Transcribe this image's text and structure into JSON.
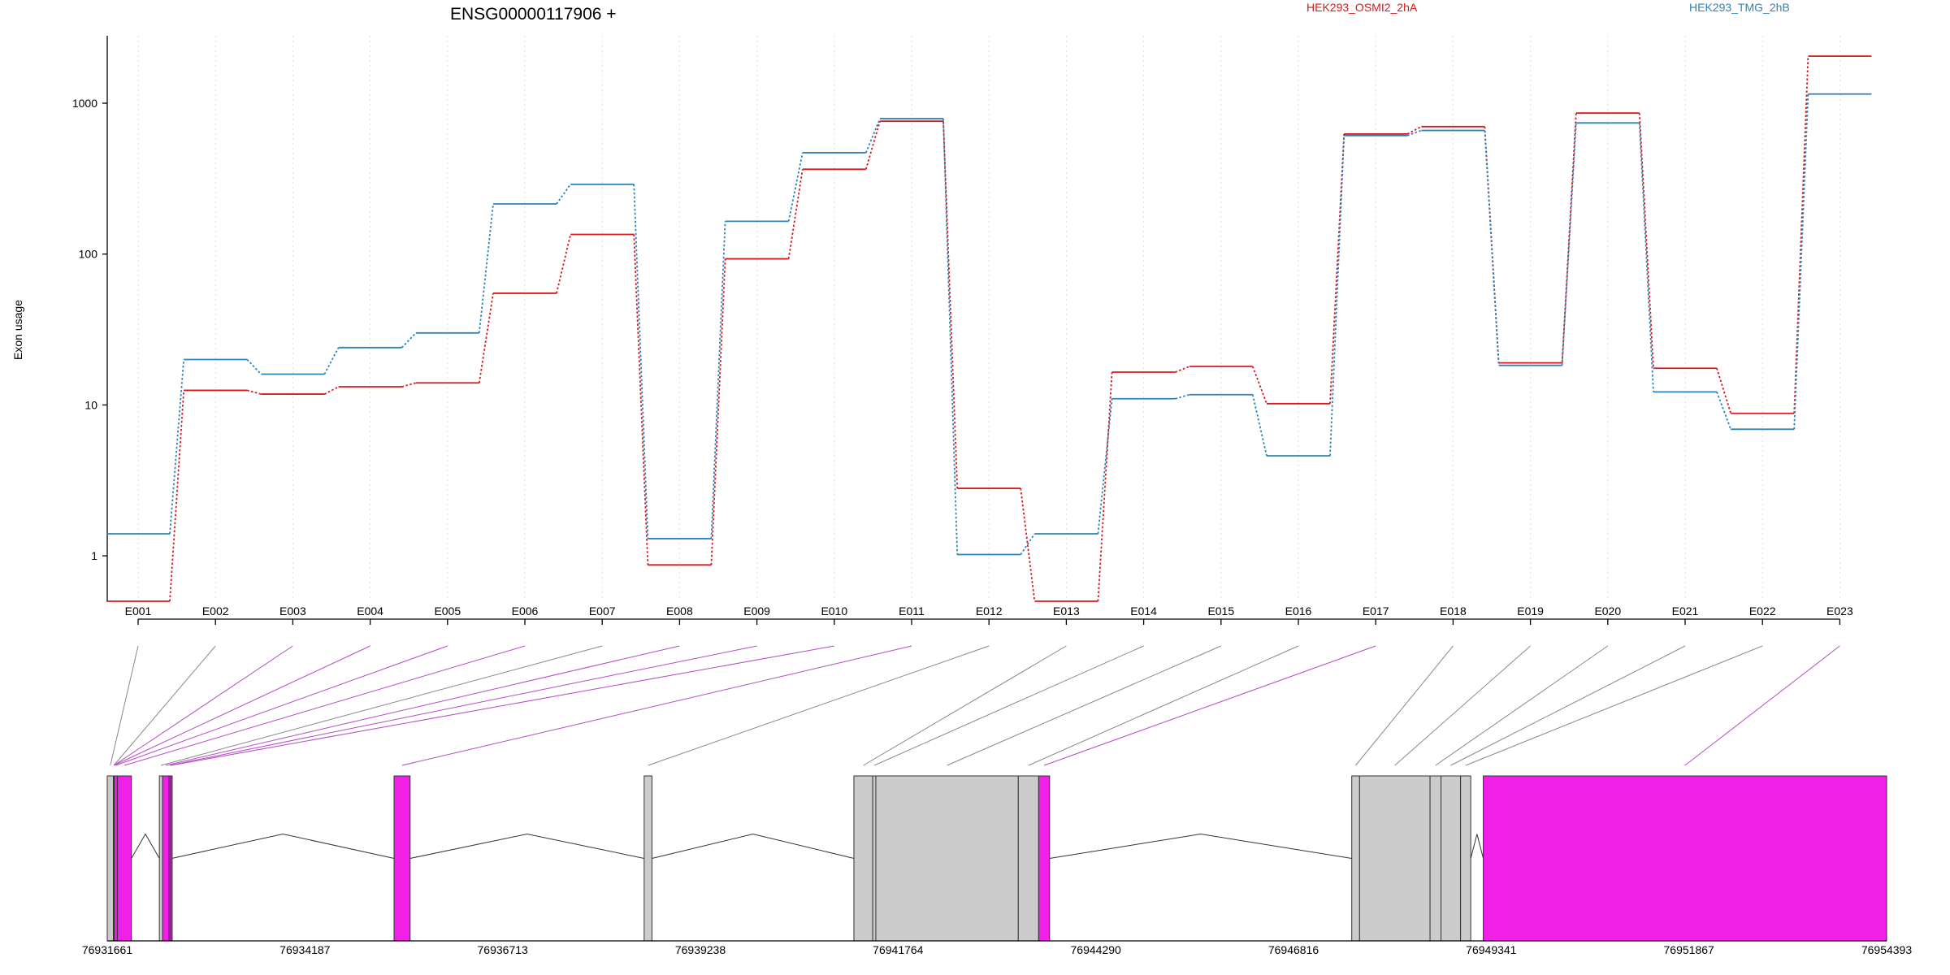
{
  "chart_data": {
    "type": "line",
    "title": "ENSG00000117906 +",
    "xlabel": "",
    "ylabel": "Exon usage",
    "yscale": "log",
    "ylim": [
      0.5,
      2800
    ],
    "yticks": [
      1,
      10,
      100,
      1000
    ],
    "ytick_labels": [
      "1",
      "10",
      "100",
      "1000"
    ],
    "grid": "vertical dotted",
    "legend": "top",
    "categories": [
      "E001",
      "E002",
      "E003",
      "E004",
      "E005",
      "E006",
      "E007",
      "E008",
      "E009",
      "E010",
      "E011",
      "E012",
      "E013",
      "E014",
      "E015",
      "E016",
      "E017",
      "E018",
      "E019",
      "E020",
      "E021",
      "E022",
      "E023"
    ],
    "series": [
      {
        "name": "HEK293_OSMI2_2hA",
        "color": "#d7191c",
        "values": [
          0.5,
          12.5,
          11.8,
          13.2,
          14,
          55,
          135,
          0.87,
          93,
          365,
          760,
          2.8,
          0.5,
          16.5,
          18,
          10.2,
          625,
          700,
          19,
          860,
          17.5,
          8.8,
          2050
        ]
      },
      {
        "name": "HEK293_TMG_2hB",
        "color": "#2b83ba",
        "values": [
          1.4,
          20,
          16,
          24,
          30,
          215,
          290,
          1.3,
          165,
          470,
          790,
          1.02,
          1.4,
          11,
          11.7,
          4.6,
          610,
          660,
          18.3,
          740,
          12.2,
          6.9,
          1150
        ]
      }
    ],
    "gene_model": {
      "coord_labels": [
        "76931661",
        "76934187",
        "76936713",
        "76939238",
        "76941764",
        "76944290",
        "76946816",
        "76949341",
        "76951867",
        "76954393"
      ],
      "coord_start": 76931661,
      "coord_end": 76954393,
      "highlight_color": "#f020e6",
      "normal_color": "#cccccc",
      "exons": [
        {
          "id": "E001",
          "start": 76931661,
          "end": 76931740,
          "highlight": false
        },
        {
          "id": "E002",
          "start": 76931740,
          "end": 76931750,
          "highlight": false
        },
        {
          "id": "E003",
          "start": 76931750,
          "end": 76931742,
          "highlight": true
        },
        {
          "id": "E004",
          "start": 76931742,
          "end": 76931750,
          "highlight": true
        },
        {
          "id": "E005",
          "start": 76931750,
          "end": 76931790,
          "highlight": true
        },
        {
          "id": "E006",
          "start": 76931790,
          "end": 76931970,
          "highlight": true
        },
        {
          "id": "E007",
          "start": 76932327,
          "end": 76932367,
          "highlight": false
        },
        {
          "id": "E008",
          "start": 76932367,
          "end": 76932450,
          "highlight": true
        },
        {
          "id": "E009",
          "start": 76932450,
          "end": 76932470,
          "highlight": true
        },
        {
          "id": "E010",
          "start": 76932470,
          "end": 76932485,
          "highlight": true
        },
        {
          "id": "E011",
          "start": 76935325,
          "end": 76935530,
          "highlight": true
        },
        {
          "id": "E012",
          "start": 76938520,
          "end": 76938620,
          "highlight": false
        },
        {
          "id": "E013",
          "start": 76941200,
          "end": 76941440,
          "highlight": false
        },
        {
          "id": "E014",
          "start": 76941440,
          "end": 76941480,
          "highlight": false
        },
        {
          "id": "E015",
          "start": 76941480,
          "end": 76943300,
          "highlight": false
        },
        {
          "id": "E016",
          "start": 76943300,
          "end": 76943560,
          "highlight": false
        },
        {
          "id": "E017",
          "start": 76943560,
          "end": 76943700,
          "highlight": true
        },
        {
          "id": "E018",
          "start": 76947560,
          "end": 76947660,
          "highlight": false
        },
        {
          "id": "E019",
          "start": 76947660,
          "end": 76948560,
          "highlight": false
        },
        {
          "id": "E020",
          "start": 76948560,
          "end": 76948700,
          "highlight": false
        },
        {
          "id": "E021",
          "start": 76948700,
          "end": 76948950,
          "highlight": false
        },
        {
          "id": "E022",
          "start": 76948950,
          "end": 76949080,
          "highlight": false
        },
        {
          "id": "E023",
          "start": 76949240,
          "end": 76954393,
          "highlight": true
        }
      ]
    }
  }
}
